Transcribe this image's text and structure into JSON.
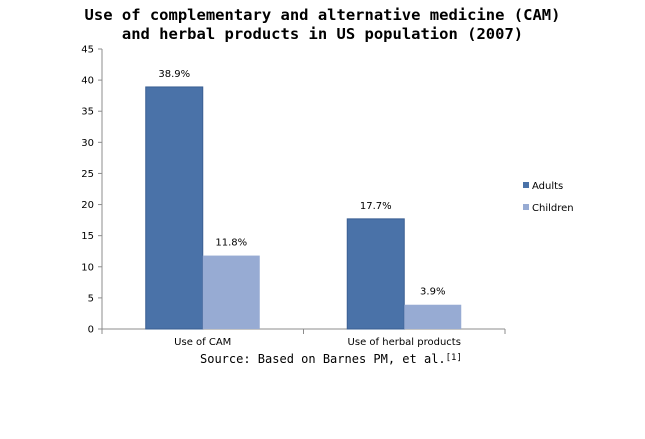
{
  "chart_data": {
    "type": "bar",
    "title_lines": [
      "Use of complementary and alternative medicine (CAM)",
      "and herbal products in US population (2007)"
    ],
    "categories": [
      "Use of CAM",
      "Use of herbal products"
    ],
    "series": [
      {
        "name": "Adults",
        "values": [
          38.9,
          17.7
        ],
        "labels": [
          "38.9%",
          "17.7%"
        ],
        "color": "#4a72a8"
      },
      {
        "name": "Children",
        "values": [
          11.8,
          3.9
        ],
        "labels": [
          "11.8%",
          "3.9%"
        ],
        "color": "#97abd3"
      }
    ],
    "ylim": [
      0,
      45
    ],
    "yticks": [
      "0",
      "5",
      "10",
      "15",
      "20",
      "25",
      "30",
      "35",
      "40",
      "45"
    ],
    "ytick_values": [
      0,
      5,
      10,
      15,
      20,
      25,
      30,
      35,
      40,
      45
    ],
    "grid": false,
    "legend_position": "right",
    "axis_color": "#8c8c8c"
  },
  "source": {
    "text": "Source: Based on Barnes PM, et al.",
    "ref": "[1]"
  }
}
